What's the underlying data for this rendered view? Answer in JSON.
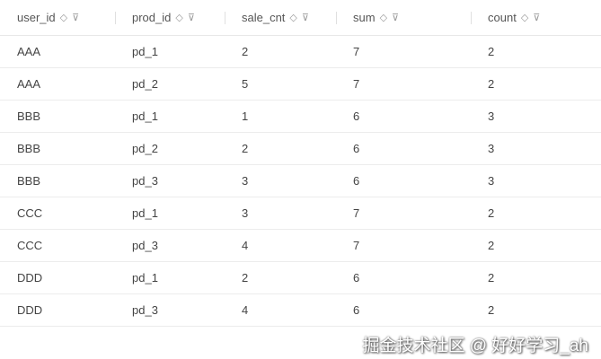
{
  "columns": [
    "user_id",
    "prod_id",
    "sale_cnt",
    "sum",
    "count"
  ],
  "rows": [
    [
      "AAA",
      "pd_1",
      "2",
      "7",
      "2"
    ],
    [
      "AAA",
      "pd_2",
      "5",
      "7",
      "2"
    ],
    [
      "BBB",
      "pd_1",
      "1",
      "6",
      "3"
    ],
    [
      "BBB",
      "pd_2",
      "2",
      "6",
      "3"
    ],
    [
      "BBB",
      "pd_3",
      "3",
      "6",
      "3"
    ],
    [
      "CCC",
      "pd_1",
      "3",
      "7",
      "2"
    ],
    [
      "CCC",
      "pd_3",
      "4",
      "7",
      "2"
    ],
    [
      "DDD",
      "pd_1",
      "2",
      "6",
      "2"
    ],
    [
      "DDD",
      "pd_3",
      "4",
      "6",
      "2"
    ]
  ],
  "watermark": "掘金技术社区 @ 好好学习_ah"
}
